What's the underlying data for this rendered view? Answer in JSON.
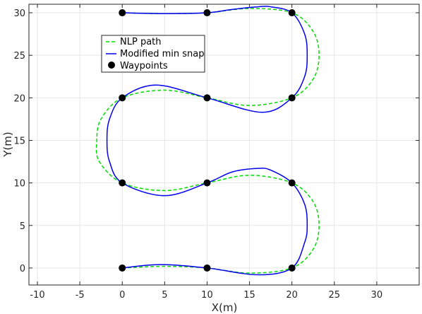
{
  "chart_data": {
    "type": "line",
    "title": "",
    "xlabel": "X(m)",
    "ylabel": "Y(m)",
    "xlim": [
      -11,
      35
    ],
    "ylim": [
      -2,
      31
    ],
    "xticks": [
      -10,
      -5,
      0,
      5,
      10,
      15,
      20,
      25,
      30
    ],
    "yticks": [
      0,
      5,
      10,
      15,
      20,
      25,
      30
    ],
    "xtick_labels": [
      "-10",
      "-5",
      "0",
      "5",
      "10",
      "15",
      "20",
      "25",
      "30"
    ],
    "ytick_labels": [
      "0",
      "5",
      "10",
      "15",
      "20",
      "25",
      "30"
    ],
    "grid": true,
    "legend_position": "upper-left",
    "colors": {
      "nlp": "#00dd00",
      "minsnap": "#0000ee",
      "waypoints": "#000000",
      "grid": "#e6e6e6",
      "axis": "#262626"
    },
    "series": [
      {
        "name": "NLP path",
        "style": "dashed",
        "x": [
          0,
          5,
          10,
          15,
          20,
          22.5,
          23.2,
          22.5,
          20,
          15,
          10,
          5,
          0,
          -2.7,
          -3,
          -2.5,
          0,
          5,
          10,
          15,
          20,
          22.5,
          23.2,
          22.5,
          20,
          15,
          10,
          5,
          0
        ],
        "y": [
          0,
          0.2,
          0,
          -0.6,
          0,
          2.2,
          5,
          7.8,
          10,
          10.9,
          10,
          9.1,
          10,
          12.5,
          15,
          17.5,
          20,
          20.9,
          20,
          19.1,
          20,
          22.2,
          25,
          27.8,
          30,
          30.5,
          30,
          29.9,
          30
        ]
      },
      {
        "name": "Modified min snap",
        "style": "solid",
        "x": [
          0,
          4.5,
          10,
          16,
          20,
          21.5,
          21.8,
          21.5,
          20,
          17.5,
          16,
          13,
          10,
          5,
          0,
          -1.5,
          -1.8,
          -1.5,
          0,
          4,
          10,
          16.5,
          20,
          21.5,
          21.8,
          21.5,
          20,
          17.5,
          16,
          13,
          10,
          5,
          0
        ],
        "y": [
          0,
          0.4,
          0,
          -0.8,
          0,
          3,
          5,
          7.5,
          10,
          11.5,
          11.7,
          11.3,
          10,
          8.5,
          10,
          12.5,
          15,
          17.5,
          20,
          21.5,
          20,
          18.3,
          20,
          22.5,
          25,
          27.5,
          30,
          30.7,
          30.7,
          30.4,
          30,
          29.9,
          30
        ]
      },
      {
        "name": "Waypoints",
        "style": "markers",
        "x": [
          0,
          10,
          20,
          20,
          10,
          0,
          0,
          10,
          20,
          20,
          10,
          0
        ],
        "y": [
          0,
          0,
          0,
          10,
          10,
          10,
          20,
          20,
          20,
          30,
          30,
          30
        ]
      }
    ]
  }
}
